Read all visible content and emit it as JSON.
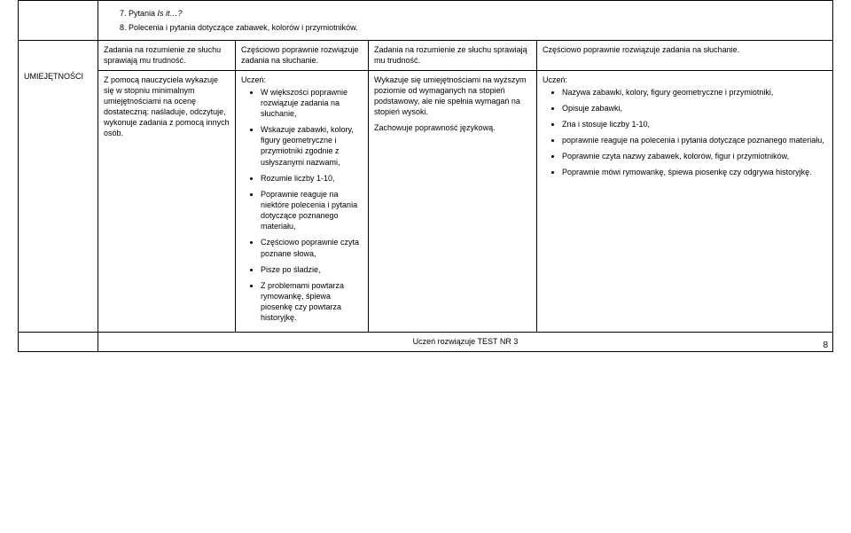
{
  "top_list_start": 7,
  "top_items": [
    {
      "prefix": "Pytania ",
      "italic": "Is it…?"
    },
    {
      "text": "Polecenia i pytania dotyczące zabawek, kolorów i przymiotników."
    }
  ],
  "row_label": "UMIEJĘTNOŚCI",
  "r1": {
    "c2": "Zadania na rozumienie ze słuchu sprawiają mu trudność.",
    "c3": "Częściowo poprawnie rozwiązuje zadania na słuchanie.",
    "c4": "Zadania na rozumienie ze słuchu sprawiają mu trudność.",
    "c5": "Częściowo poprawnie rozwiązuje zadania na słuchanie."
  },
  "r2": {
    "c2": "Z pomocą nauczyciela wykazuje się w stopniu minimalnym umiejętnościami na ocenę dostateczną: naśladuje, odczytuje, wykonuje zadania z pomocą innych osób.",
    "c3_lead": "Uczeń:",
    "c3_items": [
      "W większości poprawnie rozwiązuje zadania na słuchanie,",
      "Wskazuje zabawki, kolory, figury geometryczne i przymiotniki zgodnie z usłyszanymi nazwami,",
      "Rozumie liczby 1-10,",
      "Poprawnie reaguje na niektóre polecenia i pytania dotyczące poznanego materiału,",
      "Częściowo poprawnie czyta poznane słowa,",
      "Pisze po śladzie,",
      "Z problemami powtarza rymowankę, śpiewa piosenkę czy powtarza historyjkę."
    ],
    "c4_p1": "Wykazuje się umiejętnościami na wyższym poziomie od wymaganych na stopień podstawowy, ale nie spełnia wymagań na stopień wysoki.",
    "c4_p2": "Zachowuje poprawność językową.",
    "c5_lead": "Uczeń:",
    "c5_items": [
      "Nazywa zabawki, kolory, figury geometryczne i przymiotniki,",
      "Opisuje zabawki,",
      "Zna i stosuje liczby 1-10,",
      "poprawnie reaguje na polecenia i pytania dotyczące poznanego materiału,",
      "Poprawnie czyta nazwy zabawek, kolorów, figur i przymiotników,",
      "Poprawnie mówi rymowankę, śpiewa piosenkę czy odgrywa historyjkę."
    ]
  },
  "test_row": "Uczeń rozwiązuje TEST NR 3",
  "page_number": "8"
}
